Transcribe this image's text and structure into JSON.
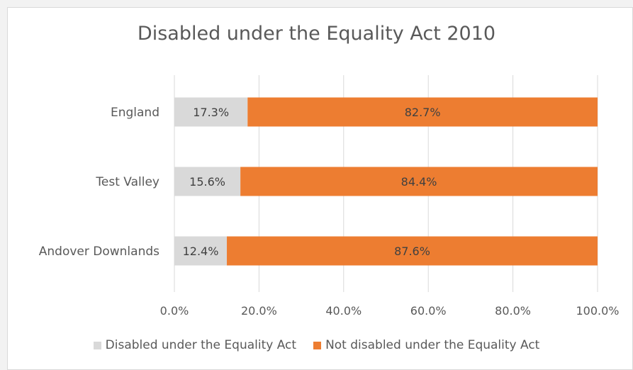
{
  "chart_data": {
    "type": "bar",
    "orientation": "horizontal",
    "stacked": "percent",
    "title": "Disabled under the Equality Act 2010",
    "categories": [
      "England",
      "Test Valley",
      "Andover Downlands"
    ],
    "series": [
      {
        "name": "Disabled under the Equality Act",
        "values": [
          17.3,
          15.6,
          12.4
        ],
        "labels": [
          "17.3%",
          "15.6%",
          "12.4%"
        ],
        "color": "#d9d9d9"
      },
      {
        "name": "Not disabled under the Equality Act",
        "values": [
          82.7,
          84.4,
          87.6
        ],
        "labels": [
          "82.7%",
          "84.4%",
          "87.6%"
        ],
        "color": "#ed7d31"
      }
    ],
    "xlim": [
      0,
      100
    ],
    "xticks": [
      0,
      20,
      40,
      60,
      80,
      100
    ],
    "xtick_labels": [
      "0.0%",
      "20.0%",
      "40.0%",
      "60.0%",
      "80.0%",
      "100.0%"
    ],
    "grid": "vertical",
    "legend_position": "bottom"
  }
}
